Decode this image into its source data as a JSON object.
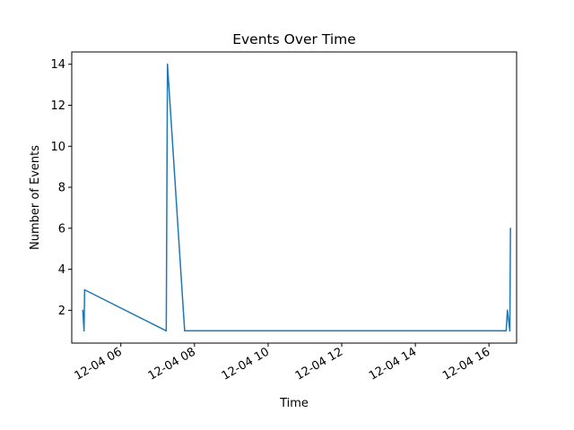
{
  "chart_data": {
    "type": "line",
    "title": "Events Over Time",
    "xlabel": "Time",
    "ylabel": "Number of Events",
    "grid": false,
    "legend": "none",
    "line_color": "#1f77b4",
    "xlim": [
      "12-04 04:40",
      "12-04 16:45"
    ],
    "ylim": [
      0.4,
      14.6
    ],
    "x_ticks": [
      {
        "t": "12-04 06:00",
        "label": "12-04 06"
      },
      {
        "t": "12-04 08:00",
        "label": "12-04 08"
      },
      {
        "t": "12-04 10:00",
        "label": "12-04 10"
      },
      {
        "t": "12-04 12:00",
        "label": "12-04 12"
      },
      {
        "t": "12-04 14:00",
        "label": "12-04 14"
      },
      {
        "t": "12-04 16:00",
        "label": "12-04 16"
      }
    ],
    "y_ticks": [
      2,
      4,
      6,
      8,
      10,
      12,
      14
    ],
    "points": [
      {
        "t": "12-04 04:58",
        "y": 2
      },
      {
        "t": "12-04 05:00",
        "y": 1
      },
      {
        "t": "12-04 05:01",
        "y": 3
      },
      {
        "t": "12-04 07:14",
        "y": 1
      },
      {
        "t": "12-04 07:16",
        "y": 14
      },
      {
        "t": "12-04 07:44",
        "y": 1
      },
      {
        "t": "12-04 16:28",
        "y": 1
      },
      {
        "t": "12-04 16:30",
        "y": 2
      },
      {
        "t": "12-04 16:34",
        "y": 1
      },
      {
        "t": "12-04 16:35",
        "y": 6
      }
    ]
  }
}
